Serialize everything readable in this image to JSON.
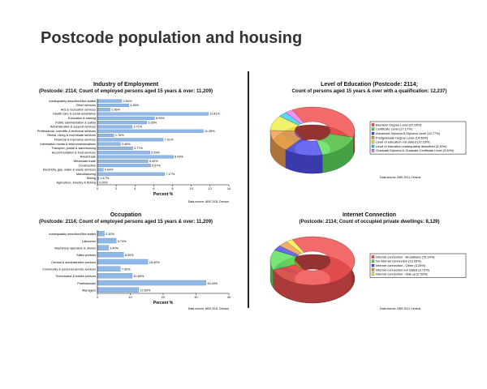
{
  "page": {
    "title": "Postcode population and housing"
  },
  "colors": {
    "bar": "#8fb8e6",
    "bar_edge": "#3f6fa8",
    "axis": "#000",
    "divider": "#222"
  },
  "chart_data": [
    {
      "id": "industry",
      "type": "bar",
      "orientation": "horizontal",
      "title": "Industry of Employment",
      "subtitle": "(Postcode: 2114; Count of employed persons aged 15 years & over: 11,209)",
      "xlabel": "Percent %",
      "xlim": [
        0,
        14
      ],
      "xticks": [
        "0",
        "2",
        "4",
        "6",
        "8",
        "10",
        "12",
        "14"
      ],
      "categories": [
        "Inadequately described/Not stated",
        "Other services",
        "Arts & recreation services",
        "Health care & social assistance",
        "Education & training",
        "Public administration & safety",
        "Administrative & support services",
        "Professional, scientific & technical services",
        "Rental, hiring & real estate services",
        "Financial & insurance services",
        "Information media & telecommunications",
        "Transport, postal & warehousing",
        "Accommodation & food services",
        "Retail trade",
        "Wholesale trade",
        "Construction",
        "Electricity, gas, water & waste services",
        "Manufacturing",
        "Mining",
        "Agriculture, forestry & fishing"
      ],
      "values": [
        2.6,
        3.35,
        1.36,
        11.81,
        6.09,
        5.26,
        3.71,
        11.28,
        1.76,
        7.01,
        2.46,
        3.77,
        5.59,
        8.09,
        5.4,
        5.67,
        0.64,
        7.17,
        0.17,
        0.05
      ],
      "labels": [
        "2.60%",
        "3.35%",
        "1.36%",
        "11.81%",
        "6.09%",
        "5.26%",
        "3.71%",
        "11.28%",
        "1.76%",
        "7.01%",
        "2.46%",
        "3.77%",
        "5.59%",
        "8.09%",
        "5.40%",
        "5.67%",
        "0.64%",
        "7.17%",
        "0.17%",
        "0.05%"
      ],
      "source": "Data source: ABS 2011 Census"
    },
    {
      "id": "occupation",
      "type": "bar",
      "orientation": "horizontal",
      "title": "Occupation",
      "subtitle": "(Postcode: 2114; Count of employed persons aged 15 years & over: 11,209)",
      "xlabel": "Percent %",
      "xlim": [
        0,
        40
      ],
      "xticks": [
        "0",
        "10",
        "20",
        "30",
        "40"
      ],
      "categories": [
        "Inadequately described/Not stated",
        "Labourers",
        "Machinery operators & drivers",
        "Sales workers",
        "Clerical & administrative workers",
        "Community & personal service workers",
        "Technicians & trades workers",
        "Professionals",
        "Managers"
      ],
      "values": [
        2.1,
        5.74,
        3.4,
        8.0,
        15.4,
        7.0,
        10.6,
        33.04,
        12.6
      ],
      "labels": [
        "2.10%",
        "5.74%",
        "3.40%",
        "8.00%",
        "15.40%",
        "7.00%",
        "10.60%",
        "33.04%",
        "12.60%"
      ],
      "source": "Data source: ABS 2011 Census"
    },
    {
      "id": "education",
      "type": "pie",
      "title": "Level of Education (Postcode: 2114;",
      "subtitle": "Count of persons aged 15 years & over with a qualification: 12,237)",
      "categories": [
        "Bachelor Degree Level",
        "Certificate Level",
        "Advanced Diploma & Diploma Level",
        "Postgraduate Degree Level",
        "Level of education not stated",
        "Level of education inadequately described",
        "Graduate Diploma & Graduate Certificate Level"
      ],
      "values": [
        37.05,
        17.17,
        14.77,
        14.56,
        10.16,
        3.3,
        3.0
      ],
      "legend": [
        "Bachelor Degree Level (37.05%)",
        "Certificate Level (17.17%)",
        "Advanced Diploma & Diploma Level (14.77%)",
        "Postgraduate Degree Level (14.56%)",
        "Level of education not stated (10.16%)",
        "Level of education inadequately described (3.30%)",
        "Graduate Diploma & Graduate Certificate Level (3.00%)"
      ],
      "colors": [
        "#f05050",
        "#60e060",
        "#5050f0",
        "#f0a050",
        "#f0f050",
        "#40d0f0",
        "#f080f0"
      ],
      "legend_position": "right",
      "source": "Data source: ABS 2011 Census"
    },
    {
      "id": "internet",
      "type": "pie",
      "title": "Internet Connection",
      "subtitle": "(Postcode: 2114; Count of occupied private dwellings: 8,129)",
      "categories": [
        "Internet connection - Broadband",
        "No internet connection",
        "Internet connection - Other",
        "Internet connection not stated",
        "Internet connection - Dial-up"
      ],
      "values": [
        76.24,
        13.25,
        3.25,
        3.73,
        2.53
      ],
      "legend": [
        "Internet connection - Broadband (76.24%)",
        "No internet connection (13.25%)",
        "Internet connection - Other (3.25%)",
        "Internet connection not stated (3.73%)",
        "Internet connection - Dial-up (2.53%)"
      ],
      "colors": [
        "#f05050",
        "#60e060",
        "#5050f0",
        "#f0a050",
        "#f0f050"
      ],
      "legend_position": "right",
      "source": "Data source: ABS 2011 Census"
    }
  ]
}
